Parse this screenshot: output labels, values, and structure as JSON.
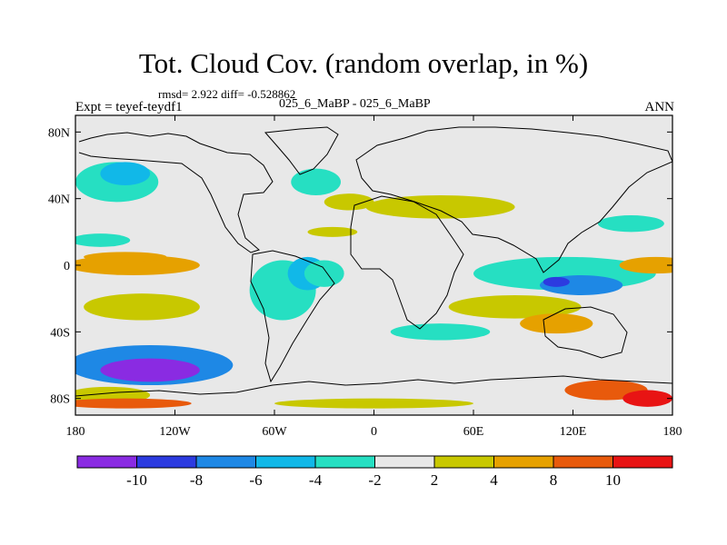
{
  "header": {
    "title": "Tot. Cloud Cov. (random overlap, in %)",
    "stats": "rmsd= 2.922 diff= -0.528862",
    "expt": "Expt = teyef-teydf1",
    "cases": "025_6_MaBP - 025_6_MaBP",
    "season": "ANN"
  },
  "chart_data": {
    "type": "heatmap",
    "title": "Tot. Cloud Cov. (random overlap, in %)",
    "subtitle": "025_6_MaBP - 025_6_MaBP",
    "xlabel": "",
    "ylabel": "",
    "xlim": [
      -180,
      180
    ],
    "ylim": [
      -90,
      90
    ],
    "x_ticks": [
      {
        "value": -180,
        "label": "180"
      },
      {
        "value": -120,
        "label": "120W"
      },
      {
        "value": -60,
        "label": "60W"
      },
      {
        "value": 0,
        "label": "0"
      },
      {
        "value": 60,
        "label": "60E"
      },
      {
        "value": 120,
        "label": "120E"
      },
      {
        "value": 180,
        "label": "180"
      }
    ],
    "y_ticks": [
      {
        "value": 80,
        "label": "80N"
      },
      {
        "value": 40,
        "label": "40N"
      },
      {
        "value": 0,
        "label": "0"
      },
      {
        "value": -40,
        "label": "40S"
      },
      {
        "value": -80,
        "label": "80S"
      }
    ],
    "levels": [
      -10,
      -8,
      -6,
      -4,
      -2,
      2,
      4,
      8,
      10
    ],
    "level_labels": [
      "-10",
      "-8",
      "-6",
      "-4",
      "-2",
      "2",
      "4",
      "8",
      "10"
    ],
    "colors": [
      "#8a2be2",
      "#2c3be0",
      "#1e88e5",
      "#11b8e8",
      "#26dfc2",
      "#e8e8e8",
      "#c8c800",
      "#e6a100",
      "#e85a0c",
      "#e81414"
    ],
    "fields": [
      {
        "lon": -145,
        "lat": 0,
        "rlon": 40,
        "rlat": 6,
        "value": 6
      },
      {
        "lon": -150,
        "lat": 5,
        "rlon": 25,
        "rlat": 3,
        "value": 8
      },
      {
        "lon": -140,
        "lat": -25,
        "rlon": 35,
        "rlat": 8,
        "value": 3
      },
      {
        "lon": -155,
        "lat": 50,
        "rlon": 25,
        "rlat": 12,
        "value": -3
      },
      {
        "lon": -150,
        "lat": 55,
        "rlon": 15,
        "rlat": 7,
        "value": -5
      },
      {
        "lon": -165,
        "lat": 15,
        "rlon": 18,
        "rlat": 4,
        "value": -3
      },
      {
        "lon": -135,
        "lat": -60,
        "rlon": 50,
        "rlat": 12,
        "value": -7
      },
      {
        "lon": -135,
        "lat": -63,
        "rlon": 30,
        "rlat": 7,
        "value": -11
      },
      {
        "lon": -160,
        "lat": -78,
        "rlon": 25,
        "rlat": 5,
        "value": 3
      },
      {
        "lon": -150,
        "lat": -83,
        "rlon": 40,
        "rlat": 3,
        "value": 9
      },
      {
        "lon": -55,
        "lat": -15,
        "rlon": 20,
        "rlat": 18,
        "value": -3
      },
      {
        "lon": -40,
        "lat": -5,
        "rlon": 12,
        "rlat": 10,
        "value": -5
      },
      {
        "lon": -30,
        "lat": -5,
        "rlon": 12,
        "rlat": 8,
        "value": -3
      },
      {
        "lon": -15,
        "lat": 38,
        "rlon": 15,
        "rlat": 5,
        "value": 3
      },
      {
        "lon": -35,
        "lat": 50,
        "rlon": 15,
        "rlat": 8,
        "value": -3
      },
      {
        "lon": -25,
        "lat": 20,
        "rlon": 15,
        "rlat": 3,
        "value": 3
      },
      {
        "lon": 40,
        "lat": 35,
        "rlon": 45,
        "rlat": 7,
        "value": 3
      },
      {
        "lon": 85,
        "lat": -25,
        "rlon": 40,
        "rlat": 7,
        "value": 3
      },
      {
        "lon": 110,
        "lat": -35,
        "rlon": 22,
        "rlat": 6,
        "value": 5
      },
      {
        "lon": 40,
        "lat": -40,
        "rlon": 30,
        "rlat": 5,
        "value": -3
      },
      {
        "lon": 115,
        "lat": -5,
        "rlon": 55,
        "rlat": 10,
        "value": -3
      },
      {
        "lon": 125,
        "lat": -12,
        "rlon": 25,
        "rlat": 6,
        "value": -7
      },
      {
        "lon": 110,
        "lat": -10,
        "rlon": 8,
        "rlat": 3,
        "value": -9
      },
      {
        "lon": 170,
        "lat": 0,
        "rlon": 22,
        "rlat": 5,
        "value": 5
      },
      {
        "lon": 155,
        "lat": 25,
        "rlon": 20,
        "rlat": 5,
        "value": -3
      },
      {
        "lon": 140,
        "lat": -75,
        "rlon": 25,
        "rlat": 6,
        "value": 9
      },
      {
        "lon": 165,
        "lat": -80,
        "rlon": 15,
        "rlat": 5,
        "value": 11
      },
      {
        "lon": 0,
        "lat": -83,
        "rlon": 60,
        "rlat": 3,
        "value": 3
      }
    ]
  },
  "colorbar": {
    "labels": [
      "-10",
      "-8",
      "-6",
      "-4",
      "-2",
      "2",
      "4",
      "8",
      "10"
    ]
  }
}
